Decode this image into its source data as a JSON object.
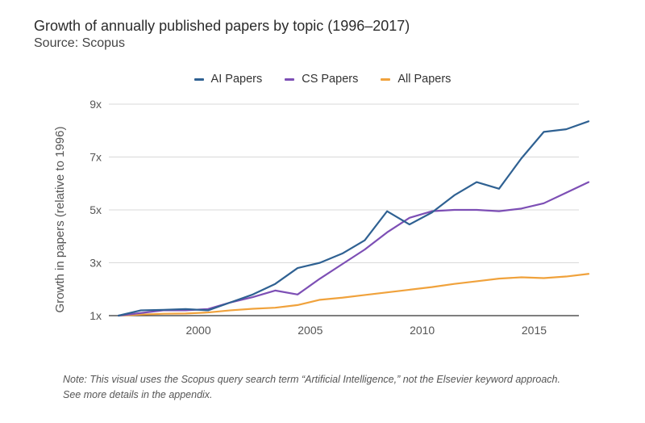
{
  "chart_data": {
    "type": "line",
    "title": "Growth of annually published papers by topic (1996–2017)",
    "subtitle": "Source: Scopus",
    "xlabel": "",
    "ylabel": "Growth in papers (relative to 1996)",
    "xlim": [
      1996,
      2017
    ],
    "ylim": [
      1,
      9
    ],
    "x_ticks": [
      2000,
      2005,
      2010,
      2015
    ],
    "y_ticks": [
      1,
      3,
      5,
      7,
      9
    ],
    "y_tick_labels": [
      "1x",
      "3x",
      "5x",
      "7x",
      "9x"
    ],
    "grid": "horizontal",
    "legend_position": "top-center",
    "x": [
      1996,
      1997,
      1998,
      1999,
      2000,
      2001,
      2002,
      2003,
      2004,
      2005,
      2006,
      2007,
      2008,
      2009,
      2010,
      2011,
      2012,
      2013,
      2014,
      2015,
      2016,
      2017
    ],
    "series": [
      {
        "name": "AI Papers",
        "color": "#2f6192",
        "values": [
          1.0,
          1.2,
          1.22,
          1.25,
          1.2,
          1.5,
          1.8,
          2.2,
          2.8,
          3.0,
          3.35,
          3.85,
          4.95,
          4.45,
          4.9,
          5.55,
          6.05,
          5.8,
          6.95,
          7.95,
          8.05,
          8.35
        ]
      },
      {
        "name": "CS Papers",
        "color": "#7d4fb5",
        "values": [
          1.0,
          1.1,
          1.2,
          1.2,
          1.25,
          1.5,
          1.7,
          1.95,
          1.8,
          2.4,
          2.95,
          3.5,
          4.15,
          4.7,
          4.95,
          5.0,
          5.0,
          4.95,
          5.05,
          5.25,
          5.65,
          6.05
        ]
      },
      {
        "name": "All Papers",
        "color": "#f0a23c",
        "values": [
          1.0,
          1.04,
          1.07,
          1.08,
          1.12,
          1.2,
          1.26,
          1.3,
          1.4,
          1.6,
          1.68,
          1.78,
          1.88,
          1.98,
          2.08,
          2.2,
          2.3,
          2.4,
          2.45,
          2.42,
          2.48,
          2.58
        ]
      }
    ]
  },
  "note": "Note: This visual uses the Scopus query search term “Artificial Intelligence,” not the Elsevier keyword approach. See more details in the appendix."
}
